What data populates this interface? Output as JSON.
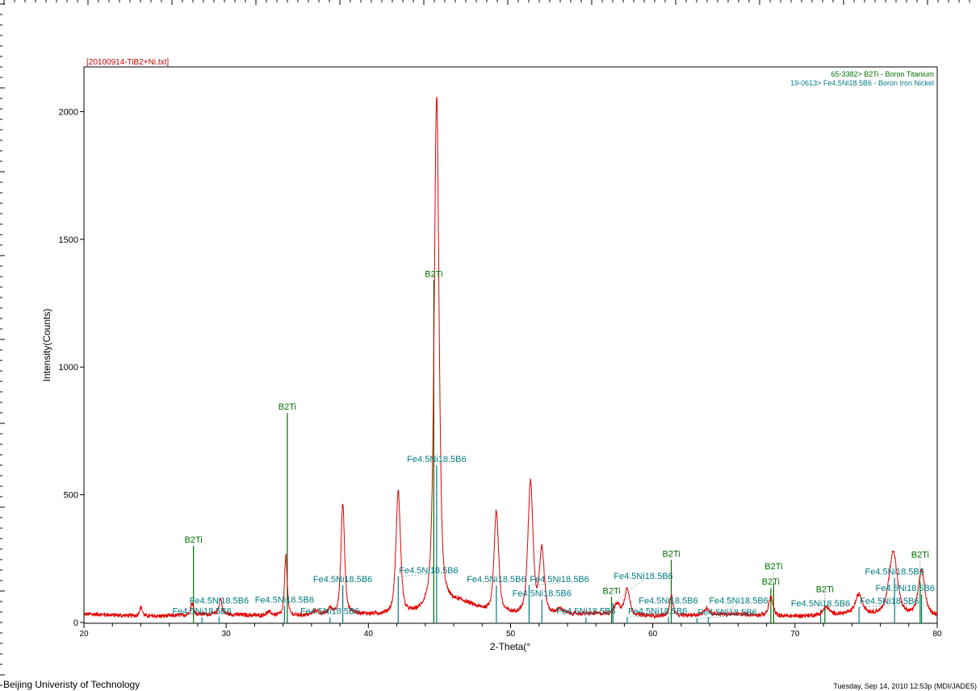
{
  "footer": {
    "institution": "Beijing Univeristy of Technology",
    "timestamp": "Tuesday, Sep 14, 2010 12:53p (MDI/JADE5)"
  },
  "chart_data": {
    "type": "line",
    "title": "[20100914-TiB2+Ni.txt]",
    "xlabel": "2-Theta(°",
    "ylabel": "Intensity(Counts)",
    "xlim": [
      20,
      80
    ],
    "ylim": [
      0,
      2175
    ],
    "xticks": [
      20,
      30,
      40,
      50,
      60,
      70,
      80
    ],
    "yticks": [
      0,
      500,
      1000,
      1500,
      2000
    ],
    "grid": false,
    "legend_placement": "top-right",
    "colors": {
      "pattern": "#e00000",
      "title": "#c00000",
      "B2Ti": "#007000",
      "Fe4.5Ni18.5B6": "#007a80"
    },
    "series": [
      {
        "name": "[20100914-TiB2+Ni.txt]",
        "background_counts": 28,
        "peaks": [
          {
            "two_theta": 24.0,
            "intensity": 35,
            "fwhm": 0.25
          },
          {
            "two_theta": 27.6,
            "intensity": 45,
            "fwhm": 0.25
          },
          {
            "two_theta": 29.6,
            "intensity": 60,
            "fwhm": 0.25
          },
          {
            "two_theta": 33.0,
            "intensity": 15,
            "fwhm": 0.5
          },
          {
            "two_theta": 34.2,
            "intensity": 235,
            "fwhm": 0.22
          },
          {
            "two_theta": 36.3,
            "intensity": 15,
            "fwhm": 0.4
          },
          {
            "two_theta": 37.3,
            "intensity": 20,
            "fwhm": 0.3
          },
          {
            "two_theta": 38.2,
            "intensity": 430,
            "fwhm": 0.3
          },
          {
            "two_theta": 42.1,
            "intensity": 480,
            "fwhm": 0.38
          },
          {
            "two_theta": 44.8,
            "intensity": 2020,
            "fwhm": 0.4
          },
          {
            "two_theta": 46.5,
            "intensity": 40,
            "fwhm": 2.5
          },
          {
            "two_theta": 49.0,
            "intensity": 395,
            "fwhm": 0.38
          },
          {
            "two_theta": 51.4,
            "intensity": 520,
            "fwhm": 0.42
          },
          {
            "two_theta": 52.2,
            "intensity": 250,
            "fwhm": 0.4
          },
          {
            "two_theta": 53.5,
            "intensity": 20,
            "fwhm": 0.6
          },
          {
            "two_theta": 57.5,
            "intensity": 40,
            "fwhm": 0.5
          },
          {
            "two_theta": 58.2,
            "intensity": 105,
            "fwhm": 0.4
          },
          {
            "two_theta": 61.3,
            "intensity": 80,
            "fwhm": 0.3
          },
          {
            "two_theta": 63.8,
            "intensity": 25,
            "fwhm": 0.4
          },
          {
            "two_theta": 68.3,
            "intensity": 75,
            "fwhm": 0.35
          },
          {
            "two_theta": 72.2,
            "intensity": 30,
            "fwhm": 0.5
          },
          {
            "two_theta": 74.5,
            "intensity": 75,
            "fwhm": 0.6
          },
          {
            "two_theta": 76.9,
            "intensity": 250,
            "fwhm": 0.7
          },
          {
            "two_theta": 78.9,
            "intensity": 175,
            "fwhm": 0.55
          }
        ]
      }
    ],
    "reference_phases": [
      {
        "legend": "65-3382> B2Ti - Boron Titanium",
        "label": "B2Ti",
        "color": "#007000",
        "lines": [
          {
            "two_theta": 27.7,
            "intensity": 300
          },
          {
            "two_theta": 34.3,
            "intensity": 820
          },
          {
            "two_theta": 44.6,
            "intensity": 1340
          },
          {
            "two_theta": 57.1,
            "intensity": 100
          },
          {
            "two_theta": 61.3,
            "intensity": 245
          },
          {
            "two_theta": 68.3,
            "intensity": 135
          },
          {
            "two_theta": 68.5,
            "intensity": 155
          },
          {
            "two_theta": 72.1,
            "intensity": 65
          },
          {
            "two_theta": 78.8,
            "intensity": 160
          }
        ]
      },
      {
        "legend": "19-0613> Fe4.5Ni18.5B6 - Boron Iron Nickel",
        "label": "Fe4.5Ni18.5B6",
        "color": "#007a80",
        "lines": [
          {
            "two_theta": 28.3,
            "intensity": 20
          },
          {
            "two_theta": 29.5,
            "intensity": 20
          },
          {
            "two_theta": 34.1,
            "intensity": 65
          },
          {
            "two_theta": 37.3,
            "intensity": 20
          },
          {
            "two_theta": 38.2,
            "intensity": 145
          },
          {
            "two_theta": 42.1,
            "intensity": 180
          },
          {
            "two_theta": 44.8,
            "intensity": 615
          },
          {
            "two_theta": 49.0,
            "intensity": 145
          },
          {
            "two_theta": 51.3,
            "intensity": 145
          },
          {
            "two_theta": 52.2,
            "intensity": 90
          },
          {
            "two_theta": 55.3,
            "intensity": 20
          },
          {
            "two_theta": 57.2,
            "intensity": 75
          },
          {
            "two_theta": 58.2,
            "intensity": 20
          },
          {
            "two_theta": 61.1,
            "intensity": 20
          },
          {
            "two_theta": 63.1,
            "intensity": 15
          },
          {
            "two_theta": 63.9,
            "intensity": 20
          },
          {
            "two_theta": 71.8,
            "intensity": 50
          },
          {
            "two_theta": 74.5,
            "intensity": 60
          },
          {
            "two_theta": 77.0,
            "intensity": 175
          },
          {
            "two_theta": 78.9,
            "intensity": 110
          }
        ]
      }
    ]
  }
}
